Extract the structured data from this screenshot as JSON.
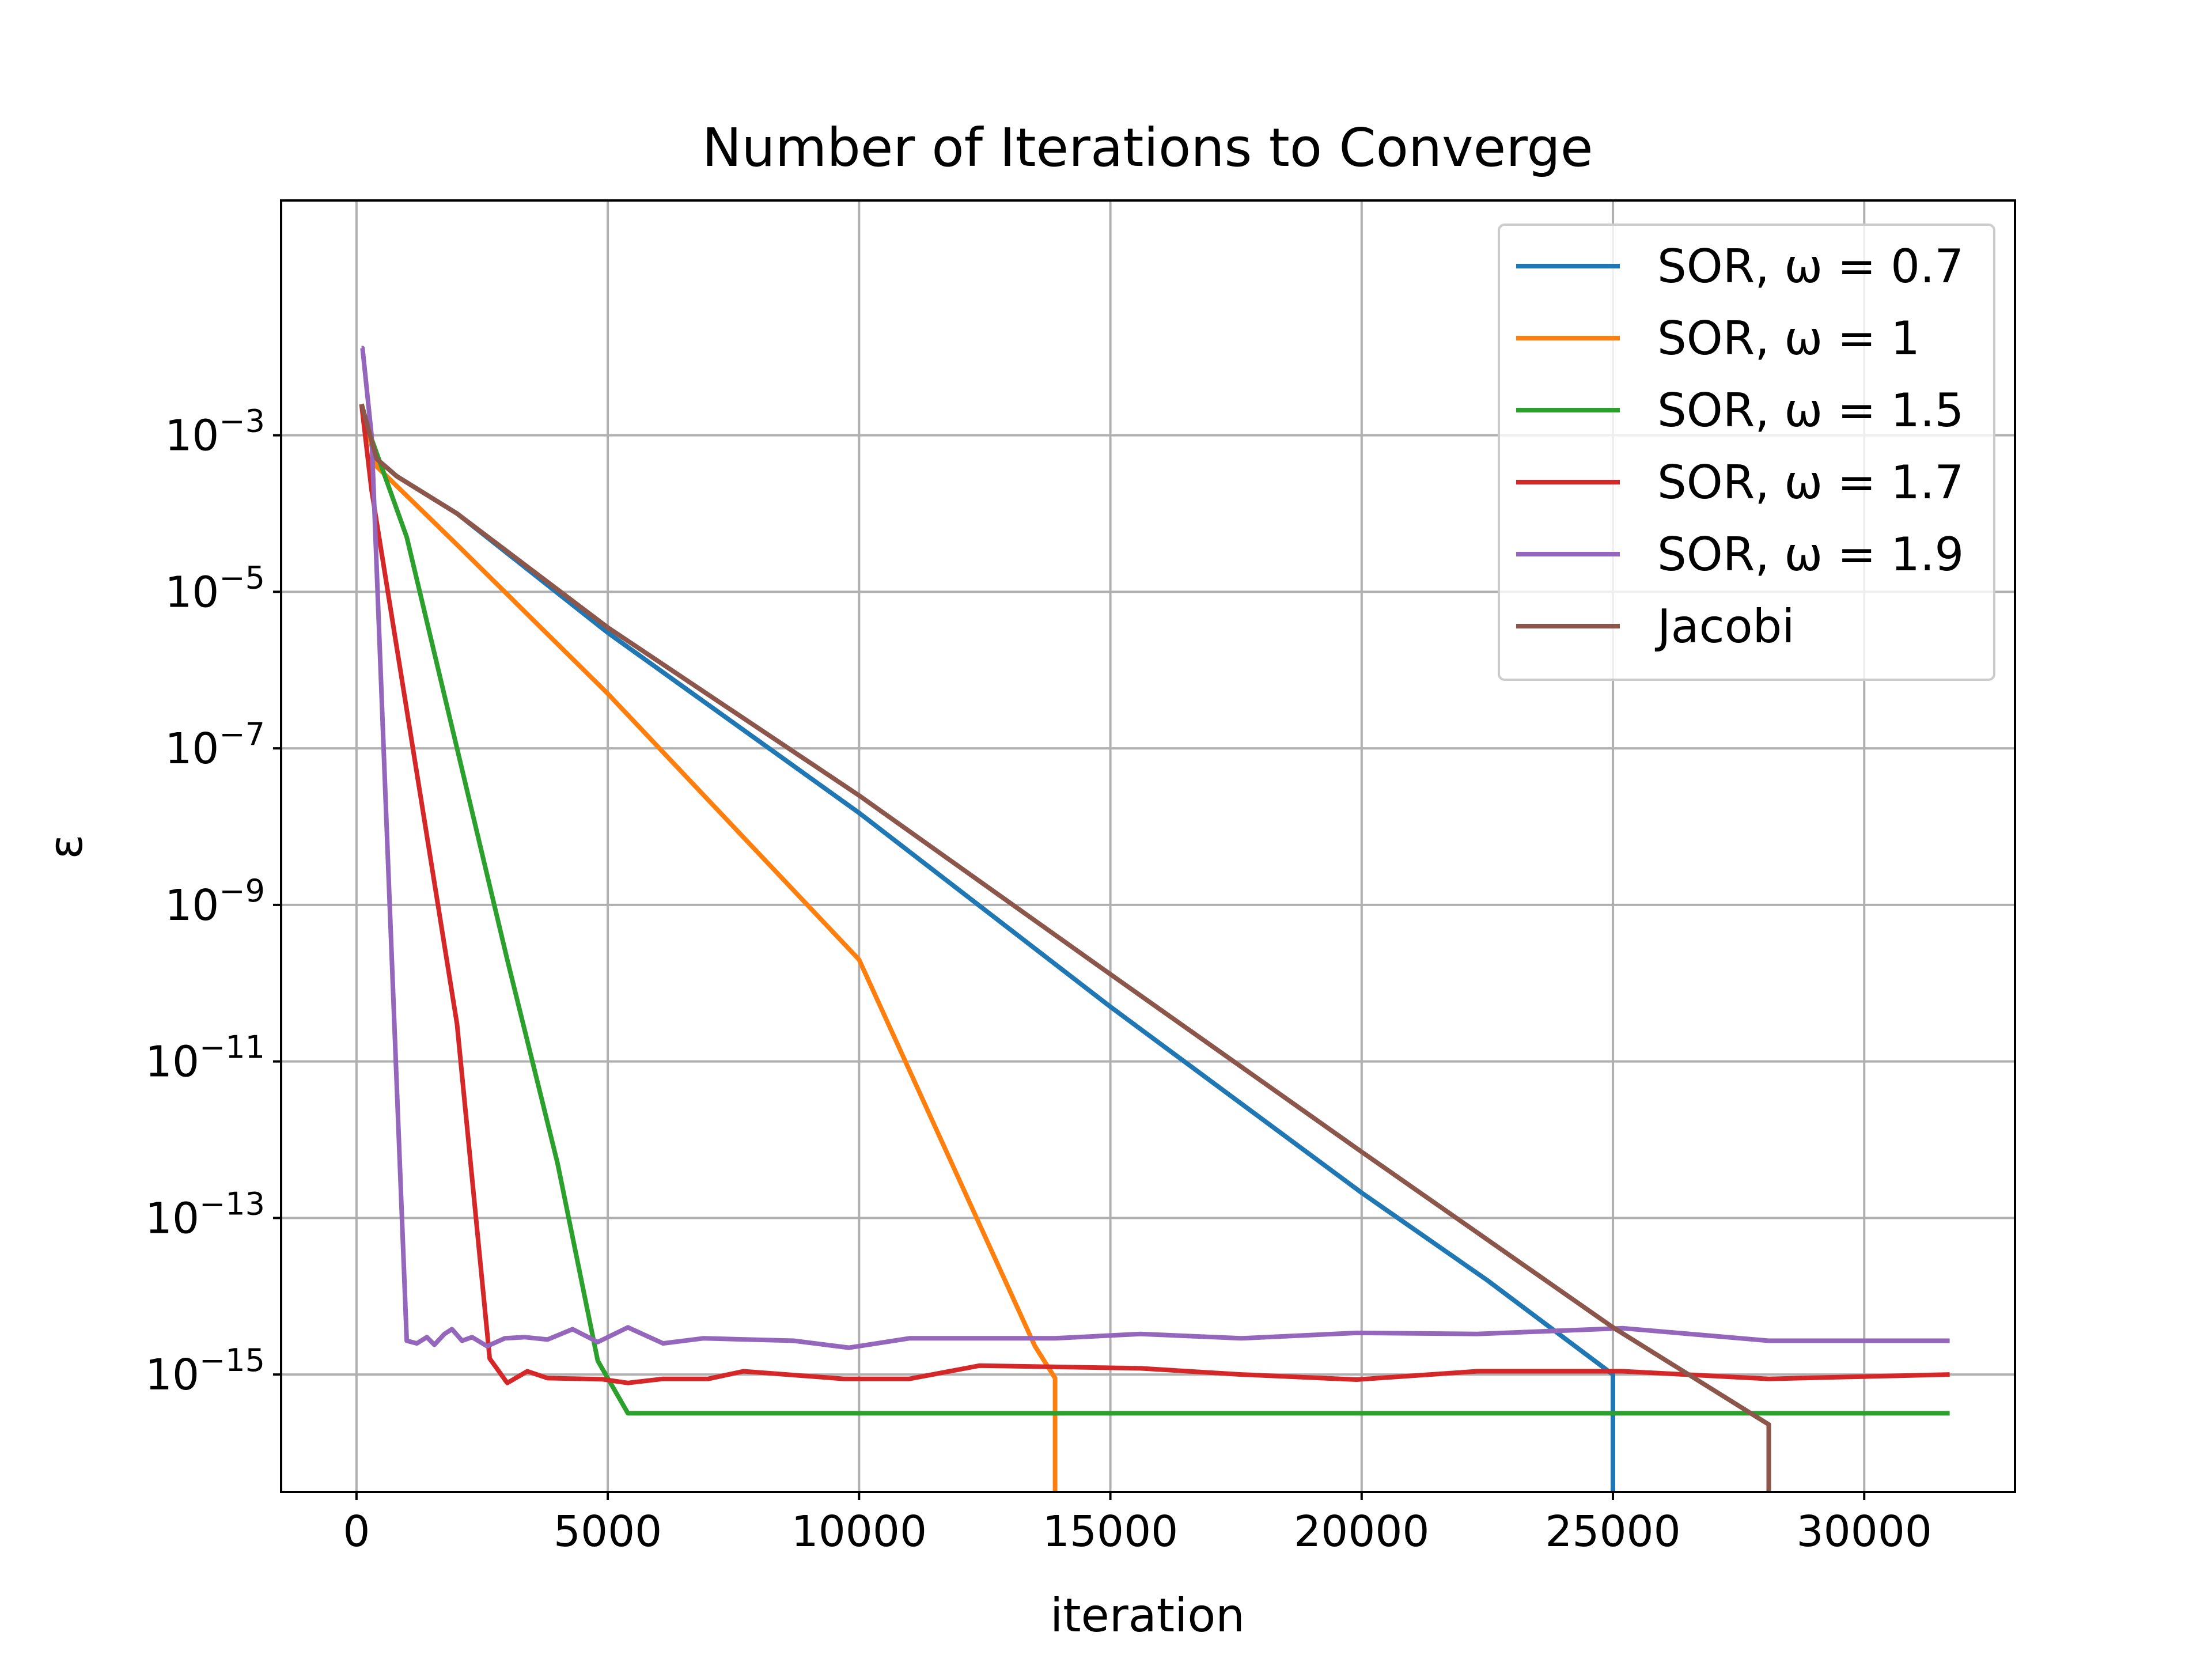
{
  "chart_data": {
    "type": "line",
    "title": "Number of Iterations to Converge",
    "xlabel": "iteration",
    "ylabel": "ε",
    "xlim": [
      -1500,
      33000
    ],
    "ylim": [
      3.16e-17,
      1.0
    ],
    "yscale": "log",
    "grid": true,
    "legend_position": "upper right",
    "x_ticks": [
      {
        "value": 0,
        "label": "0"
      },
      {
        "value": 5000,
        "label": "5000"
      },
      {
        "value": 10000,
        "label": "10000"
      },
      {
        "value": 15000,
        "label": "15000"
      },
      {
        "value": 20000,
        "label": "20000"
      },
      {
        "value": 25000,
        "label": "25000"
      },
      {
        "value": 30000,
        "label": "30000"
      }
    ],
    "y_ticks": [
      {
        "value": 0.001,
        "base": "10",
        "exp": "−3"
      },
      {
        "value": 1e-05,
        "base": "10",
        "exp": "−5"
      },
      {
        "value": 1e-07,
        "base": "10",
        "exp": "−7"
      },
      {
        "value": 1e-09,
        "base": "10",
        "exp": "−9"
      },
      {
        "value": 1e-11,
        "base": "10",
        "exp": "−11"
      },
      {
        "value": 1e-13,
        "base": "10",
        "exp": "−13"
      },
      {
        "value": 1e-15,
        "base": "10",
        "exp": "−15"
      }
    ],
    "series": [
      {
        "name": "SOR, ω = 0.7",
        "color": "#1f77b4",
        "x": [
          100,
          400,
          800,
          2000,
          5000,
          10000,
          15000,
          20000,
          22500,
          25000,
          25000
        ],
        "y": [
          0.0025,
          0.0005,
          0.0003,
          0.0001,
          3e-06,
          1.5e-08,
          5e-11,
          2.1e-13,
          1.6e-14,
          1e-15,
          1e-17
        ]
      },
      {
        "name": "SOR, ω = 1",
        "color": "#ff7f0e",
        "x": [
          100,
          400,
          2000,
          5000,
          10000,
          13500,
          13900,
          13900
        ],
        "y": [
          0.0025,
          0.0004,
          4e-05,
          5e-07,
          2e-10,
          2.3e-15,
          9e-16,
          1e-17
        ]
      },
      {
        "name": "SOR, ω = 1.5",
        "color": "#2ca02c",
        "x": [
          100,
          300,
          1000,
          2000,
          3000,
          4000,
          4800,
          5400,
          31700
        ],
        "y": [
          0.0025,
          0.0009,
          5e-05,
          1e-07,
          2e-10,
          5e-13,
          1.5e-15,
          3.2e-16,
          3.2e-16
        ]
      },
      {
        "name": "SOR, ω = 1.7",
        "color": "#d62728",
        "x": [
          100,
          300,
          2000,
          2650,
          3000,
          3400,
          3800,
          4900,
          5400,
          6100,
          7000,
          7700,
          9700,
          11000,
          12400,
          15600,
          17600,
          19900,
          22300,
          25200,
          28100,
          31700
        ],
        "y": [
          0.0025,
          0.0002,
          3e-11,
          1.6e-15,
          7.8e-16,
          1.1e-15,
          9e-16,
          8.7e-16,
          7.8e-16,
          8.8e-16,
          8.8e-16,
          1.1e-15,
          8.8e-16,
          8.8e-16,
          1.3e-15,
          1.2e-15,
          1e-15,
          8.6e-16,
          1.1e-15,
          1.1e-15,
          8.8e-16,
          1e-15
        ]
      },
      {
        "name": "SOR, ω = 1.9",
        "color": "#9467bd",
        "x": [
          100,
          120,
          300,
          600,
          1000,
          1200,
          1400,
          1550,
          1750,
          1900,
          2100,
          2300,
          2600,
          2950,
          3350,
          3800,
          4300,
          4800,
          5400,
          6100,
          6900,
          8700,
          9800,
          11000,
          13900,
          15600,
          17600,
          19900,
          22300,
          25200,
          28100,
          31700
        ],
        "y": [
          0.013,
          0.013,
          0.001,
          1e-08,
          2.7e-15,
          2.5e-15,
          3e-15,
          2.4e-15,
          3.3e-15,
          3.8e-15,
          2.7e-15,
          3e-15,
          2.3e-15,
          2.9e-15,
          3e-15,
          2.8e-15,
          3.8e-15,
          2.6e-15,
          4e-15,
          2.5e-15,
          2.9e-15,
          2.7e-15,
          2.2e-15,
          2.9e-15,
          2.9e-15,
          3.3e-15,
          2.9e-15,
          3.4e-15,
          3.3e-15,
          3.9e-15,
          2.7e-15,
          2.7e-15
        ]
      },
      {
        "name": "Jacobi",
        "color": "#8c564b",
        "x": [
          100,
          400,
          800,
          2000,
          5000,
          10000,
          15000,
          20000,
          25000,
          28100,
          28100
        ],
        "y": [
          0.0025,
          0.0005,
          0.0003,
          0.0001,
          3.5e-06,
          2.5e-08,
          1.3e-10,
          7e-13,
          4e-15,
          2.3e-16,
          1e-17
        ]
      }
    ]
  }
}
